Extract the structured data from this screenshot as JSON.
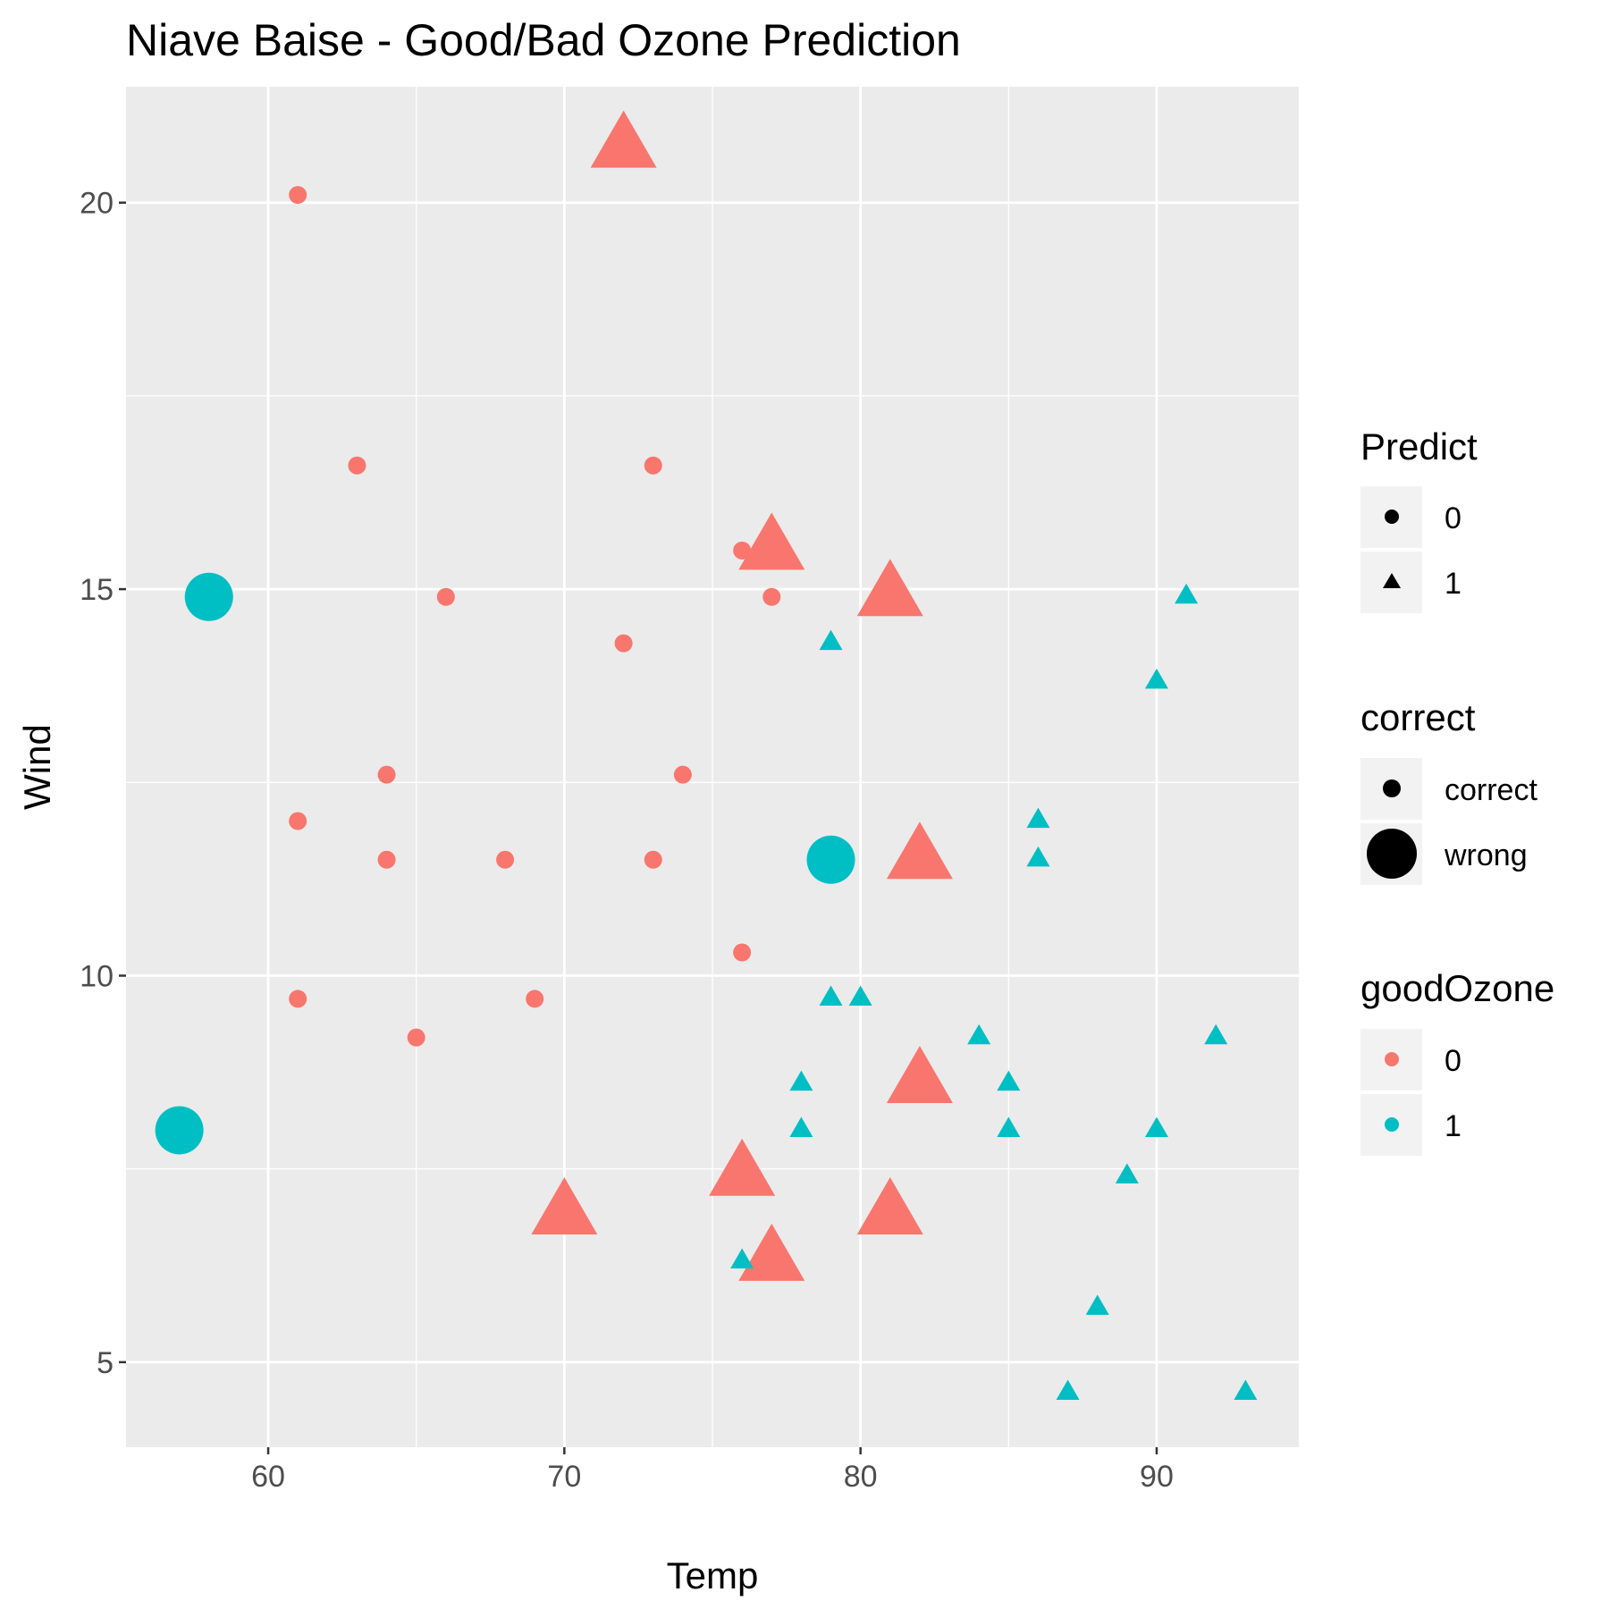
{
  "chart_data": {
    "type": "scatter",
    "title": "Niave Baise - Good/Bad Ozone Prediction",
    "xlabel": "Temp",
    "ylabel": "Wind",
    "xlim": [
      55.2,
      94.8
    ],
    "ylim": [
      3.9,
      21.5
    ],
    "x_ticks": [
      60,
      70,
      80,
      90
    ],
    "y_ticks": [
      5,
      10,
      15,
      20
    ],
    "x_tick_labels": [
      "60",
      "70",
      "80",
      "90"
    ],
    "y_tick_labels": [
      "5",
      "10",
      "15",
      "20"
    ],
    "grid": true,
    "legend_position": "right",
    "colors": {
      "0": "#F8766D",
      "1": "#00BFC4",
      "panel": "#EBEBEB",
      "grid": "#FFFFFF",
      "legend_key_bg": "#F2F2F2"
    },
    "legend": {
      "predict": {
        "title": "Predict",
        "entries": [
          {
            "label": "0",
            "shape": "circle"
          },
          {
            "label": "1",
            "shape": "triangle"
          }
        ]
      },
      "correct": {
        "title": "correct",
        "entries": [
          {
            "label": "correct",
            "size": "small"
          },
          {
            "label": "wrong",
            "size": "large"
          }
        ]
      },
      "goodOzone": {
        "title": "goodOzone",
        "entries": [
          {
            "label": "0",
            "color": "#F8766D"
          },
          {
            "label": "1",
            "color": "#00BFC4"
          }
        ]
      }
    },
    "points": [
      {
        "temp": 61,
        "wind": 20.1,
        "predict": 0,
        "goodOzone": 0,
        "correct": "correct"
      },
      {
        "temp": 63,
        "wind": 16.6,
        "predict": 0,
        "goodOzone": 0,
        "correct": "correct"
      },
      {
        "temp": 73,
        "wind": 16.6,
        "predict": 0,
        "goodOzone": 0,
        "correct": "correct"
      },
      {
        "temp": 76,
        "wind": 15.5,
        "predict": 0,
        "goodOzone": 0,
        "correct": "correct"
      },
      {
        "temp": 66,
        "wind": 14.9,
        "predict": 0,
        "goodOzone": 0,
        "correct": "correct"
      },
      {
        "temp": 77,
        "wind": 14.9,
        "predict": 0,
        "goodOzone": 0,
        "correct": "correct"
      },
      {
        "temp": 72,
        "wind": 14.3,
        "predict": 0,
        "goodOzone": 0,
        "correct": "correct"
      },
      {
        "temp": 64,
        "wind": 12.6,
        "predict": 0,
        "goodOzone": 0,
        "correct": "correct"
      },
      {
        "temp": 74,
        "wind": 12.6,
        "predict": 0,
        "goodOzone": 0,
        "correct": "correct"
      },
      {
        "temp": 61,
        "wind": 12.0,
        "predict": 0,
        "goodOzone": 0,
        "correct": "correct"
      },
      {
        "temp": 64,
        "wind": 11.5,
        "predict": 0,
        "goodOzone": 0,
        "correct": "correct"
      },
      {
        "temp": 68,
        "wind": 11.5,
        "predict": 0,
        "goodOzone": 0,
        "correct": "correct"
      },
      {
        "temp": 73,
        "wind": 11.5,
        "predict": 0,
        "goodOzone": 0,
        "correct": "correct"
      },
      {
        "temp": 76,
        "wind": 10.3,
        "predict": 0,
        "goodOzone": 0,
        "correct": "correct"
      },
      {
        "temp": 61,
        "wind": 9.7,
        "predict": 0,
        "goodOzone": 0,
        "correct": "correct"
      },
      {
        "temp": 69,
        "wind": 9.7,
        "predict": 0,
        "goodOzone": 0,
        "correct": "correct"
      },
      {
        "temp": 65,
        "wind": 9.2,
        "predict": 0,
        "goodOzone": 0,
        "correct": "correct"
      },
      {
        "temp": 58,
        "wind": 14.9,
        "predict": 0,
        "goodOzone": 1,
        "correct": "wrong"
      },
      {
        "temp": 79,
        "wind": 11.5,
        "predict": 0,
        "goodOzone": 1,
        "correct": "wrong"
      },
      {
        "temp": 57,
        "wind": 8.0,
        "predict": 0,
        "goodOzone": 1,
        "correct": "wrong"
      },
      {
        "temp": 72,
        "wind": 20.7,
        "predict": 1,
        "goodOzone": 0,
        "correct": "wrong"
      },
      {
        "temp": 77,
        "wind": 15.5,
        "predict": 1,
        "goodOzone": 0,
        "correct": "wrong"
      },
      {
        "temp": 81,
        "wind": 14.9,
        "predict": 1,
        "goodOzone": 0,
        "correct": "wrong"
      },
      {
        "temp": 82,
        "wind": 11.5,
        "predict": 1,
        "goodOzone": 0,
        "correct": "wrong"
      },
      {
        "temp": 82,
        "wind": 8.6,
        "predict": 1,
        "goodOzone": 0,
        "correct": "wrong"
      },
      {
        "temp": 76,
        "wind": 7.4,
        "predict": 1,
        "goodOzone": 0,
        "correct": "wrong"
      },
      {
        "temp": 70,
        "wind": 6.9,
        "predict": 1,
        "goodOzone": 0,
        "correct": "wrong"
      },
      {
        "temp": 81,
        "wind": 6.9,
        "predict": 1,
        "goodOzone": 0,
        "correct": "wrong"
      },
      {
        "temp": 77,
        "wind": 6.3,
        "predict": 1,
        "goodOzone": 0,
        "correct": "wrong"
      },
      {
        "temp": 91,
        "wind": 14.9,
        "predict": 1,
        "goodOzone": 1,
        "correct": "correct"
      },
      {
        "temp": 79,
        "wind": 14.3,
        "predict": 1,
        "goodOzone": 1,
        "correct": "correct"
      },
      {
        "temp": 90,
        "wind": 13.8,
        "predict": 1,
        "goodOzone": 1,
        "correct": "correct"
      },
      {
        "temp": 86,
        "wind": 12.0,
        "predict": 1,
        "goodOzone": 1,
        "correct": "correct"
      },
      {
        "temp": 86,
        "wind": 11.5,
        "predict": 1,
        "goodOzone": 1,
        "correct": "correct"
      },
      {
        "temp": 79,
        "wind": 9.7,
        "predict": 1,
        "goodOzone": 1,
        "correct": "correct"
      },
      {
        "temp": 80,
        "wind": 9.7,
        "predict": 1,
        "goodOzone": 1,
        "correct": "correct"
      },
      {
        "temp": 84,
        "wind": 9.2,
        "predict": 1,
        "goodOzone": 1,
        "correct": "correct"
      },
      {
        "temp": 92,
        "wind": 9.2,
        "predict": 1,
        "goodOzone": 1,
        "correct": "correct"
      },
      {
        "temp": 78,
        "wind": 8.6,
        "predict": 1,
        "goodOzone": 1,
        "correct": "correct"
      },
      {
        "temp": 85,
        "wind": 8.6,
        "predict": 1,
        "goodOzone": 1,
        "correct": "correct"
      },
      {
        "temp": 78,
        "wind": 8.0,
        "predict": 1,
        "goodOzone": 1,
        "correct": "correct"
      },
      {
        "temp": 85,
        "wind": 8.0,
        "predict": 1,
        "goodOzone": 1,
        "correct": "correct"
      },
      {
        "temp": 90,
        "wind": 8.0,
        "predict": 1,
        "goodOzone": 1,
        "correct": "correct"
      },
      {
        "temp": 89,
        "wind": 7.4,
        "predict": 1,
        "goodOzone": 1,
        "correct": "correct"
      },
      {
        "temp": 76,
        "wind": 6.3,
        "predict": 1,
        "goodOzone": 1,
        "correct": "correct"
      },
      {
        "temp": 88,
        "wind": 5.7,
        "predict": 1,
        "goodOzone": 1,
        "correct": "correct"
      },
      {
        "temp": 87,
        "wind": 4.6,
        "predict": 1,
        "goodOzone": 1,
        "correct": "correct"
      },
      {
        "temp": 93,
        "wind": 4.6,
        "predict": 1,
        "goodOzone": 1,
        "correct": "correct"
      }
    ]
  }
}
